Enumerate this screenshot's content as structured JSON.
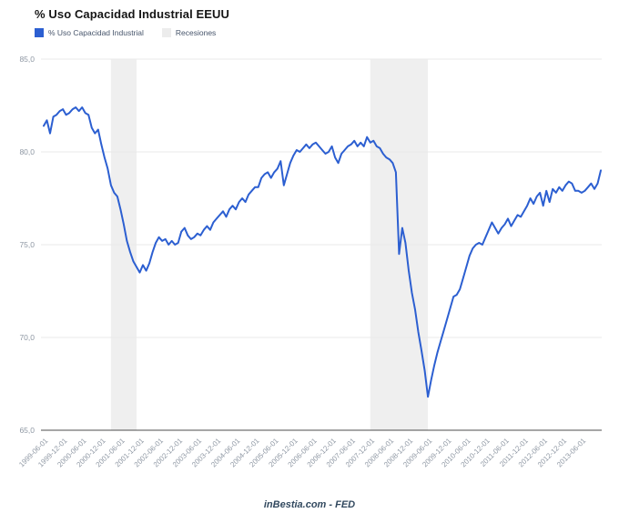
{
  "page": {
    "title": "% Uso Capacidad Industrial EEUU"
  },
  "legend": {
    "series_label": "% Uso Capacidad Industrial",
    "series_color": "#2c5fd1",
    "recessions_label": "Recesiones",
    "recessions_color": "#ececec"
  },
  "footer": {
    "credit": "inBestia.com - FED"
  },
  "chart_data": {
    "type": "line",
    "title": "% Uso Capacidad Industrial EEUU",
    "series_name": "% Uso Capacidad Industrial",
    "x_start": "1999-06-01",
    "x_interval": "monthly",
    "x_tick_every": 6,
    "x_tick_labels": [
      "1999-06-01",
      "1999-12-01",
      "2000-06-01",
      "2000-12-01",
      "2001-06-01",
      "2001-12-01",
      "2002-06-01",
      "2002-12-01",
      "2003-06-01",
      "2003-12-01",
      "2004-06-01",
      "2004-12-01",
      "2005-06-01",
      "2005-12-01",
      "2006-06-01",
      "2006-12-01",
      "2007-06-01",
      "2007-12-01",
      "2008-06-01",
      "2008-12-01",
      "2009-06-01",
      "2009-12-01",
      "2010-06-01",
      "2010-12-01",
      "2011-06-01",
      "2011-12-01",
      "2012-06-01",
      "2012-12-01",
      "2013-06-01"
    ],
    "ylim": [
      65,
      85
    ],
    "y_tick_step": 5,
    "y_tick_labels": [
      "85,0",
      "80,0",
      "75,0",
      "70,0",
      "65,0"
    ],
    "grid": "horizontal",
    "legend_position": "top-left",
    "line_color": "#2c5fd1",
    "recession_band_color": "#efefef",
    "gridline_color": "#e8e8e8",
    "axis_line_color": "#4d4d4d",
    "tick_label_color": "#8e97a3",
    "recessions": [
      {
        "from_index": 21,
        "to_index": 29
      },
      {
        "from_index": 102,
        "to_index": 120
      }
    ],
    "values": [
      81.4,
      81.7,
      81.0,
      81.9,
      82.0,
      82.2,
      82.3,
      82.0,
      82.1,
      82.3,
      82.4,
      82.2,
      82.4,
      82.1,
      82.0,
      81.3,
      81.0,
      81.2,
      80.4,
      79.7,
      79.1,
      78.2,
      77.8,
      77.6,
      76.9,
      76.1,
      75.2,
      74.6,
      74.1,
      73.8,
      73.5,
      73.9,
      73.6,
      74.0,
      74.6,
      75.1,
      75.4,
      75.2,
      75.3,
      75.0,
      75.2,
      75.0,
      75.1,
      75.7,
      75.9,
      75.5,
      75.3,
      75.4,
      75.6,
      75.5,
      75.8,
      76.0,
      75.8,
      76.2,
      76.4,
      76.6,
      76.8,
      76.5,
      76.9,
      77.1,
      76.9,
      77.3,
      77.5,
      77.3,
      77.7,
      77.9,
      78.1,
      78.1,
      78.6,
      78.8,
      78.9,
      78.6,
      78.9,
      79.1,
      79.5,
      78.2,
      78.8,
      79.4,
      79.8,
      80.1,
      80.0,
      80.2,
      80.4,
      80.2,
      80.4,
      80.5,
      80.3,
      80.1,
      79.9,
      80.0,
      80.3,
      79.7,
      79.4,
      79.9,
      80.1,
      80.3,
      80.4,
      80.6,
      80.3,
      80.5,
      80.3,
      80.8,
      80.5,
      80.6,
      80.3,
      80.2,
      79.9,
      79.7,
      79.6,
      79.4,
      78.9,
      74.5,
      75.9,
      75.1,
      73.6,
      72.4,
      71.5,
      70.3,
      69.3,
      68.2,
      66.8,
      67.7,
      68.5,
      69.2,
      69.8,
      70.4,
      71.0,
      71.6,
      72.2,
      72.3,
      72.6,
      73.2,
      73.8,
      74.4,
      74.8,
      75.0,
      75.1,
      75.0,
      75.4,
      75.8,
      76.2,
      75.9,
      75.6,
      75.9,
      76.1,
      76.4,
      76.0,
      76.3,
      76.6,
      76.5,
      76.8,
      77.1,
      77.5,
      77.2,
      77.6,
      77.8,
      77.1,
      77.9,
      77.3,
      78.0,
      77.8,
      78.1,
      77.9,
      78.2,
      78.4,
      78.3,
      77.9,
      77.9,
      77.8,
      77.9,
      78.1,
      78.3,
      78.0,
      78.3,
      79.0
    ]
  }
}
